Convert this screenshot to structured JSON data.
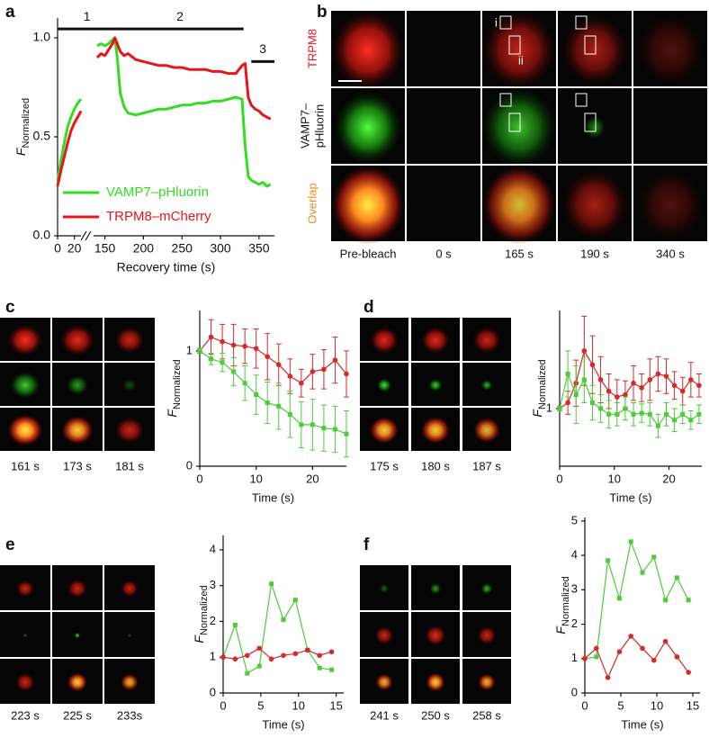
{
  "chart_data": [
    {
      "type": "line",
      "panel": "a",
      "ylabel": "F",
      "ylabel_sub": "Normalized",
      "xlabel": "Recovery time (s)",
      "xlim": [
        0,
        370
      ],
      "xbreak": [
        30,
        140
      ],
      "xticks": [
        0,
        20,
        150,
        200,
        250,
        300,
        350
      ],
      "ylim": [
        0,
        1.1
      ],
      "yticks": [
        {
          "value": 0,
          "label": "0.0"
        },
        0.5,
        {
          "value": 1,
          "label": "1.0"
        }
      ],
      "legend": "lower left",
      "phases": [
        {
          "label": "1",
          "x": [
            0,
            165
          ],
          "y": 1.045
        },
        {
          "label": "2",
          "x": [
            165,
            330
          ],
          "y": 1.045
        },
        {
          "label": "3",
          "x": [
            340,
            370
          ],
          "y": 0.88
        }
      ],
      "x": [
        0,
        4,
        8,
        12,
        16,
        20,
        24,
        28,
        85,
        140,
        145,
        150,
        155,
        160,
        163,
        166,
        170,
        175,
        180,
        190,
        200,
        210,
        220,
        230,
        240,
        250,
        260,
        270,
        280,
        290,
        300,
        310,
        320,
        328,
        332,
        336,
        340,
        345,
        350,
        355,
        360,
        365
      ],
      "series": [
        {
          "name": "VAMP7–pHluorin",
          "color": "#33dd22",
          "values": [
            0.28,
            0.38,
            0.47,
            0.55,
            0.6,
            0.64,
            0.67,
            0.69,
            null,
            0.96,
            0.97,
            0.96,
            0.97,
            0.99,
            1.0,
            0.9,
            0.72,
            0.65,
            0.62,
            0.61,
            0.62,
            0.63,
            0.64,
            0.64,
            0.65,
            0.66,
            0.66,
            0.67,
            0.67,
            0.68,
            0.68,
            0.69,
            0.7,
            0.69,
            0.45,
            0.3,
            0.28,
            0.27,
            0.26,
            0.27,
            0.25,
            0.26
          ]
        },
        {
          "name": "TRPM8–mCherry",
          "color": "#e8151b",
          "values": [
            0.25,
            0.33,
            0.4,
            0.47,
            0.53,
            0.57,
            0.6,
            0.63,
            null,
            0.9,
            0.92,
            0.91,
            0.94,
            0.97,
            1.0,
            0.97,
            0.93,
            0.91,
            0.92,
            0.89,
            0.88,
            0.87,
            0.86,
            0.86,
            0.85,
            0.85,
            0.84,
            0.84,
            0.84,
            0.83,
            0.83,
            0.82,
            0.82,
            0.86,
            0.87,
            0.7,
            0.66,
            0.64,
            0.63,
            0.61,
            0.6,
            0.59
          ]
        }
      ]
    },
    {
      "type": "line",
      "ylabel": "F",
      "ylabel_sub": "Normalized",
      "xlabel": "Time (s)",
      "xlim": [
        0,
        26
      ],
      "xticks": [
        0,
        10,
        20
      ],
      "ylim": [
        0,
        1.35
      ],
      "yticks": [
        0,
        1
      ],
      "x": [
        0,
        2,
        4,
        6,
        8,
        10,
        12,
        14,
        16,
        18,
        20,
        22,
        24,
        26
      ],
      "series": [
        {
          "color": "#d42a2a",
          "marker": "circle",
          "values": [
            1.0,
            1.12,
            1.08,
            1.05,
            1.04,
            1.02,
            0.95,
            0.88,
            0.78,
            0.72,
            0.82,
            0.84,
            0.92,
            0.8
          ],
          "errors": [
            0.02,
            0.15,
            0.15,
            0.18,
            0.15,
            0.17,
            0.2,
            0.18,
            0.15,
            0.12,
            0.15,
            0.17,
            0.2,
            0.2
          ]
        },
        {
          "color": "#4ccc3a",
          "marker": "square",
          "values": [
            1.0,
            0.93,
            0.9,
            0.82,
            0.72,
            0.62,
            0.55,
            0.52,
            0.45,
            0.36,
            0.36,
            0.33,
            0.32,
            0.28
          ],
          "errors": [
            0.02,
            0.05,
            0.08,
            0.12,
            0.15,
            0.17,
            0.18,
            0.2,
            0.2,
            0.2,
            0.22,
            0.2,
            0.2,
            0.2
          ]
        }
      ]
    },
    {
      "type": "line",
      "ylabel": "F",
      "ylabel_sub": "Normalized",
      "xlabel": "Time (s)",
      "xlim": [
        0,
        26
      ],
      "xticks": [
        0,
        10,
        20
      ],
      "ylim": [
        0.5,
        1.85
      ],
      "yticks": [
        1
      ],
      "x": [
        0,
        1.5,
        3,
        4.5,
        6,
        7.5,
        9,
        10.5,
        12,
        13.5,
        15,
        16.5,
        18,
        19.5,
        21,
        22.5,
        24,
        25.5
      ],
      "series": [
        {
          "color": "#d42a2a",
          "marker": "circle",
          "values": [
            1.0,
            1.05,
            1.22,
            1.5,
            1.38,
            1.25,
            1.15,
            1.1,
            1.12,
            1.22,
            1.18,
            1.25,
            1.3,
            1.28,
            1.2,
            1.15,
            1.25,
            1.2
          ],
          "errors": [
            0.02,
            0.1,
            0.2,
            0.3,
            0.25,
            0.2,
            0.15,
            0.15,
            0.12,
            0.15,
            0.12,
            0.18,
            0.15,
            0.15,
            0.12,
            0.12,
            0.15,
            0.1
          ]
        },
        {
          "color": "#4ccc3a",
          "marker": "square",
          "values": [
            1.0,
            1.3,
            1.12,
            1.25,
            1.05,
            1.0,
            0.95,
            0.95,
            1.0,
            0.95,
            0.96,
            0.95,
            0.85,
            0.95,
            0.9,
            0.95,
            0.9,
            0.95
          ],
          "errors": [
            0.02,
            0.2,
            0.25,
            0.2,
            0.15,
            0.12,
            0.12,
            0.1,
            0.1,
            0.1,
            0.08,
            0.1,
            0.1,
            0.1,
            0.1,
            0.08,
            0.08,
            0.08
          ]
        }
      ]
    },
    {
      "type": "line",
      "ylabel": "F",
      "ylabel_sub": "Normalized",
      "xlabel": "Time (s)",
      "xlim": [
        0,
        16
      ],
      "xticks": [
        0,
        5,
        10,
        15
      ],
      "ylim": [
        0,
        4.4
      ],
      "yticks": [
        0,
        1,
        2,
        3,
        4
      ],
      "x": [
        0,
        1.6,
        3.2,
        4.8,
        6.4,
        8,
        9.6,
        11.2,
        12.8,
        14.4
      ],
      "series": [
        {
          "color": "#4ccc3a",
          "marker": "square",
          "values": [
            1.0,
            1.9,
            0.55,
            0.75,
            3.05,
            2.05,
            2.6,
            1.2,
            0.7,
            0.65
          ]
        },
        {
          "color": "#d42a2a",
          "marker": "circle",
          "values": [
            1.0,
            0.95,
            1.05,
            1.25,
            0.95,
            1.05,
            1.1,
            1.2,
            1.05,
            1.15
          ]
        }
      ]
    },
    {
      "type": "line",
      "ylabel": "F",
      "ylabel_sub": "Normalized",
      "xlabel": "Time (s)",
      "xlim": [
        0,
        16
      ],
      "xticks": [
        0,
        5,
        10,
        15
      ],
      "ylim": [
        0,
        5.1
      ],
      "yticks": [
        0,
        1,
        2,
        3,
        4,
        5
      ],
      "x": [
        0,
        1.6,
        3.2,
        4.8,
        6.4,
        8,
        9.6,
        11.2,
        12.8,
        14.4
      ],
      "series": [
        {
          "color": "#4ccc3a",
          "marker": "square",
          "values": [
            1.0,
            1.05,
            3.85,
            2.75,
            4.4,
            3.5,
            3.95,
            2.7,
            3.35,
            2.7
          ]
        },
        {
          "color": "#d42a2a",
          "marker": "circle",
          "values": [
            1.0,
            1.3,
            0.45,
            1.2,
            1.65,
            1.3,
            0.95,
            1.5,
            1.05,
            0.6
          ]
        }
      ]
    }
  ],
  "micrographs": {
    "b": {
      "panel": "b",
      "row_labels": [
        [
          "TRPM8"
        ],
        [
          "VAMP7–",
          "pHluorin"
        ],
        [
          "Overlap"
        ]
      ],
      "columns": [
        "Pre-bleach",
        "0 s",
        "165 s",
        "190 s",
        "340 s"
      ],
      "annotations": [
        "i",
        "ii"
      ]
    },
    "c": {
      "panel": "c",
      "columns": [
        "161 s",
        "173 s",
        "181 s"
      ]
    },
    "d": {
      "panel": "d",
      "columns": [
        "175 s",
        "180 s",
        "187 s"
      ]
    },
    "e": {
      "panel": "e",
      "columns": [
        "223 s",
        "225 s",
        "233s"
      ]
    },
    "f": {
      "panel": "f",
      "columns": [
        "241 s",
        "250 s",
        "258 s"
      ]
    }
  }
}
